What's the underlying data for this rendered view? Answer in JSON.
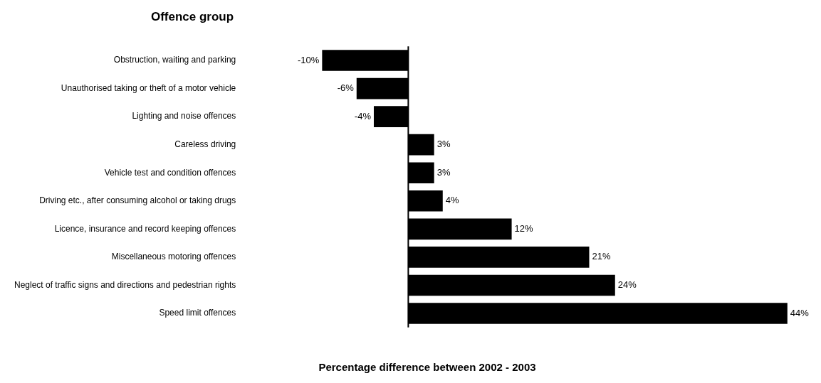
{
  "chart_data": {
    "type": "bar",
    "orientation": "horizontal",
    "ylabel": "Offence group",
    "xlabel": "Percentage difference between 2002 - 2003",
    "categories": [
      "Obstruction, waiting and parking",
      "Unauthorised taking or theft of a motor vehicle",
      "Lighting and noise offences",
      "Careless driving",
      "Vehicle test and condition offences",
      "Driving etc., after consuming alcohol or taking drugs",
      "Licence, insurance and record keeping offences",
      "Miscellaneous motoring offences",
      "Neglect of traffic signs and directions and pedestrian rights",
      "Speed limit offences"
    ],
    "values": [
      -10,
      -6,
      -4,
      3,
      3,
      4,
      12,
      21,
      24,
      44
    ],
    "value_labels": [
      "-10%",
      "-6%",
      "-4%",
      "3%",
      "3%",
      "4%",
      "12%",
      "21%",
      "24%",
      "44%"
    ],
    "color": "#000000",
    "tick_labels": "y",
    "grid": false,
    "legend": false
  }
}
